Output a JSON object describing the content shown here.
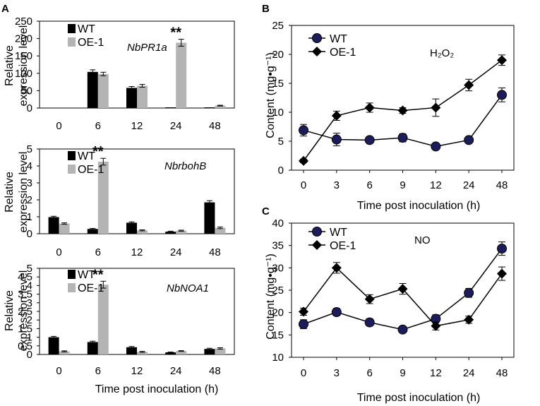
{
  "colors": {
    "wt_bar": "#000000",
    "oe_bar": "#b4b4b4",
    "wt_marker": "#1c1c5a",
    "oe_marker": "#000000",
    "axis": "#000000"
  },
  "panel_labels": {
    "a": "A",
    "b": "B",
    "c": "C"
  },
  "shared": {
    "ylabel_line1": "Relative",
    "ylabel_line2": "expression level",
    "xlabel": "Time post inoculation (h)",
    "content_ylabel": "Content (mg•g⁻¹)"
  },
  "chart_data": [
    {
      "id": "A1",
      "type": "bar",
      "gene_label": "NbPR1a",
      "categories": [
        "0",
        "6",
        "12",
        "24",
        "48"
      ],
      "ylim": [
        0,
        250
      ],
      "yticks": [
        "0",
        "50",
        "100",
        "150",
        "200",
        "250"
      ],
      "series": [
        {
          "name": "WT",
          "values": [
            0,
            104,
            58,
            2,
            2
          ],
          "errors": [
            0,
            6,
            4,
            0,
            0
          ]
        },
        {
          "name": "OE-1",
          "values": [
            0,
            98,
            64,
            188,
            7
          ],
          "errors": [
            0,
            5,
            4,
            10,
            1
          ]
        }
      ],
      "significance": {
        "category_index": 3,
        "label": "**"
      }
    },
    {
      "id": "A2",
      "type": "bar",
      "gene_label": "NbrbohB",
      "categories": [
        "0",
        "6",
        "12",
        "24",
        "48"
      ],
      "ylim": [
        0,
        5
      ],
      "yticks": [
        "0",
        "1",
        "2",
        "3",
        "4",
        "5"
      ],
      "series": [
        {
          "name": "WT",
          "values": [
            0.98,
            0.28,
            0.65,
            0.12,
            1.85
          ],
          "errors": [
            0.05,
            0.03,
            0.05,
            0.03,
            0.1
          ]
        },
        {
          "name": "OE-1",
          "values": [
            0.6,
            4.25,
            0.2,
            0.18,
            0.35
          ],
          "errors": [
            0.04,
            0.2,
            0.03,
            0.03,
            0.05
          ]
        }
      ],
      "significance": {
        "category_index": 1,
        "label": "**"
      }
    },
    {
      "id": "A3",
      "type": "bar",
      "gene_label": "NbNOA1",
      "categories": [
        "0",
        "6",
        "12",
        "24",
        "48"
      ],
      "ylim": [
        0,
        5
      ],
      "yticks": [
        "0",
        "0.5",
        "1",
        "1.5",
        "2",
        "2.5",
        "3",
        "3.5",
        "4",
        "4.5",
        "5"
      ],
      "series": [
        {
          "name": "WT",
          "values": [
            1.0,
            0.72,
            0.42,
            0.12,
            0.32
          ],
          "errors": [
            0.05,
            0.05,
            0.04,
            0.02,
            0.04
          ]
        },
        {
          "name": "OE-1",
          "values": [
            0.18,
            4.05,
            0.15,
            0.2,
            0.35
          ],
          "errors": [
            0.03,
            0.2,
            0.03,
            0.02,
            0.04
          ]
        }
      ],
      "significance": {
        "category_index": 1,
        "label": "**"
      }
    },
    {
      "id": "B",
      "type": "line",
      "annotation": "H₂O₂",
      "categories": [
        "0",
        "3",
        "6",
        "9",
        "12",
        "24",
        "48"
      ],
      "ylim": [
        0,
        25
      ],
      "yticks": [
        "0",
        "5",
        "10",
        "15",
        "20",
        "25"
      ],
      "series": [
        {
          "name": "WT",
          "marker": "circle",
          "values": [
            6.9,
            5.3,
            5.2,
            5.6,
            4.1,
            5.2,
            13.0
          ],
          "errors": [
            1.0,
            1.1,
            0.5,
            0.7,
            0.4,
            0.4,
            1.2
          ]
        },
        {
          "name": "OE-1",
          "marker": "diamond",
          "values": [
            1.6,
            9.4,
            10.8,
            10.3,
            10.8,
            14.7,
            19.0
          ],
          "errors": [
            0.3,
            0.8,
            0.8,
            0.5,
            1.5,
            1.0,
            0.9
          ]
        }
      ]
    },
    {
      "id": "C",
      "type": "line",
      "annotation": "NO",
      "categories": [
        "0",
        "3",
        "6",
        "9",
        "12",
        "24",
        "48"
      ],
      "ylim": [
        10,
        40
      ],
      "yticks": [
        "10",
        "15",
        "20",
        "25",
        "30",
        "35",
        "40"
      ],
      "series": [
        {
          "name": "WT",
          "marker": "circle",
          "values": [
            17.4,
            20.1,
            17.8,
            16.2,
            18.6,
            24.4,
            34.3
          ],
          "errors": [
            1.0,
            0.8,
            0.8,
            0.6,
            0.9,
            1.0,
            1.5
          ]
        },
        {
          "name": "OE-1",
          "marker": "diamond",
          "values": [
            20.2,
            30.0,
            23.0,
            25.3,
            17.0,
            18.4,
            28.7
          ],
          "errors": [
            0.8,
            1.2,
            1.0,
            1.2,
            0.9,
            0.8,
            1.5
          ]
        }
      ]
    }
  ]
}
